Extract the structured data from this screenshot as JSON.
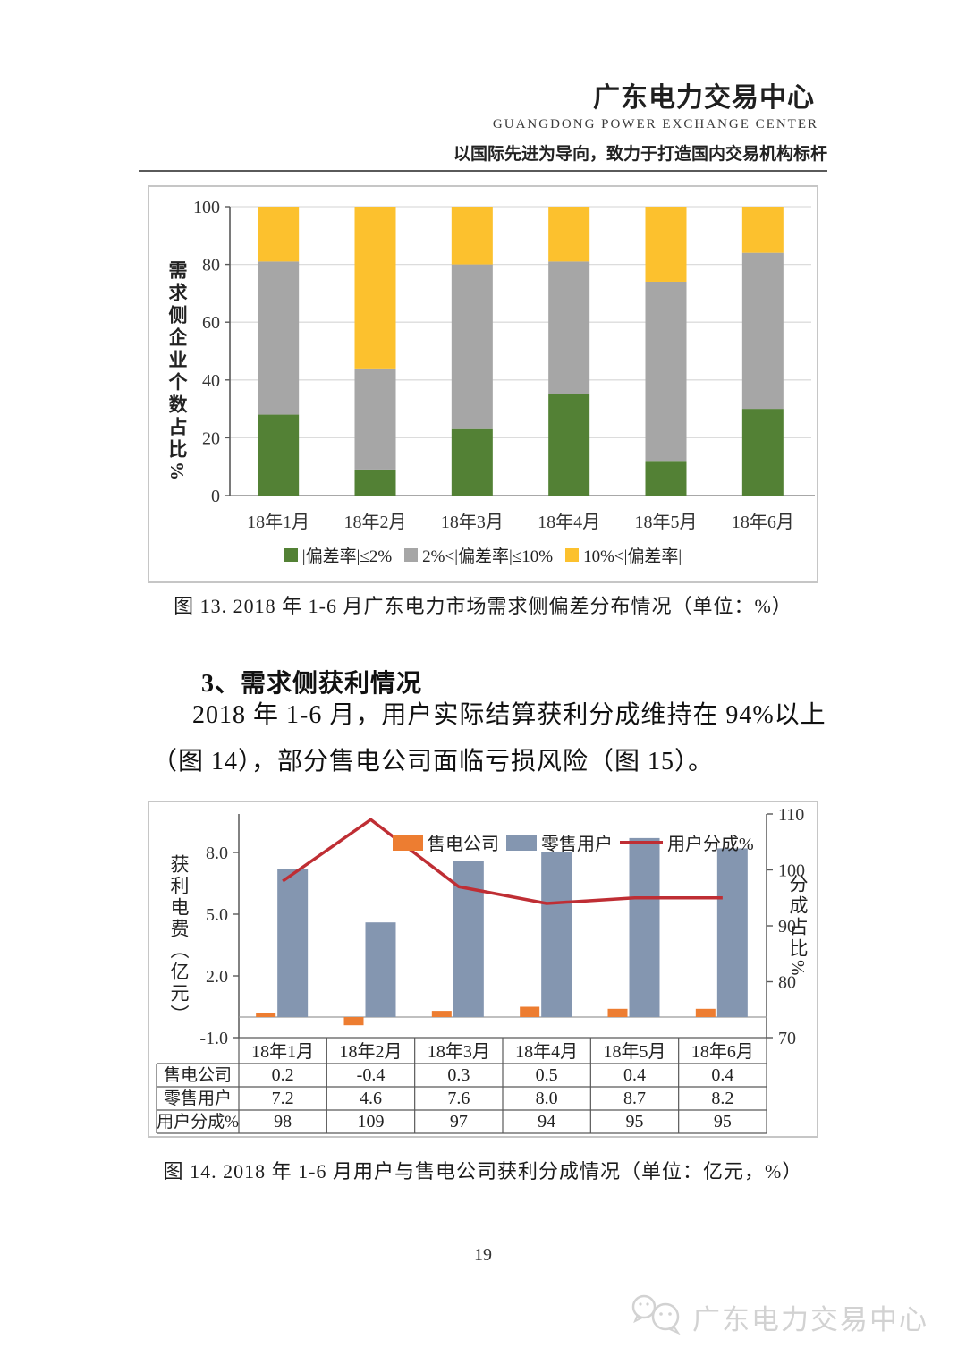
{
  "page": {
    "number": "19"
  },
  "header": {
    "org_cn": "广东电力交易中心",
    "org_en": "GUANGDONG  POWER  EXCHANGE  CENTER",
    "slogan": "以国际先进为导向，致力于打造国内交易机构标杆"
  },
  "colors": {
    "green": "#538135",
    "gray": "#a6a6a6",
    "yellow": "#fcc12e",
    "orange": "#ed7d31",
    "blue_gray": "#8496b0",
    "red": "#bf2e34",
    "grid": "#dcdcdc",
    "axis": "#595959"
  },
  "figure13": {
    "ylabel": "需求侧企业个数占比%",
    "yticks": [
      100,
      80,
      60,
      40,
      20,
      0
    ],
    "categories": [
      "18年1月",
      "18年2月",
      "18年3月",
      "18年4月",
      "18年5月",
      "18年6月"
    ],
    "series": {
      "le2": [
        28,
        9,
        23,
        35,
        12,
        30
      ],
      "mid": [
        53,
        35,
        57,
        46,
        62,
        54
      ],
      "gt10": [
        19,
        56,
        20,
        19,
        26,
        16
      ]
    },
    "legend": [
      {
        "label": "|偏差率|≤2%",
        "color_key": "green"
      },
      {
        "label": "2%<|偏差率|≤10%",
        "color_key": "gray"
      },
      {
        "label": "10%<|偏差率|",
        "color_key": "yellow"
      }
    ],
    "caption": "图  13. 2018 年 1-6 月广东电力市场需求侧偏差分布情况（单位：%）"
  },
  "section3": {
    "heading": "3、需求侧获利情况",
    "body_line1": "2018 年 1-6 月，用户实际结算获利分成维持在 94%以上",
    "body_line2": "（图  14），部分售电公司面临亏损风险（图  15）。"
  },
  "figure14": {
    "ylabel_left": "获利电费（亿元）",
    "ylabel_right": "分成占比%",
    "yticks_left": [
      "8.0",
      "5.0",
      "2.0",
      "-1.0"
    ],
    "yticks_right": [
      110,
      100,
      90,
      80,
      70
    ],
    "categories": [
      "18年1月",
      "18年2月",
      "18年3月",
      "18年4月",
      "18年5月",
      "18年6月"
    ],
    "legend": [
      {
        "label": "售电公司",
        "color_key": "orange",
        "type": "rect"
      },
      {
        "label": "零售用户",
        "color_key": "blue_gray",
        "type": "rect"
      },
      {
        "label": "用户分成%",
        "color_key": "red",
        "type": "line"
      }
    ],
    "bars_company": [
      0.2,
      -0.4,
      0.3,
      0.5,
      0.4,
      0.4
    ],
    "bars_retail": [
      7.2,
      4.6,
      7.6,
      8.0,
      8.7,
      8.2
    ],
    "line_share": [
      98,
      109,
      97,
      94,
      95,
      95
    ],
    "table": {
      "row_headers": [
        "售电公司",
        "零售用户",
        "用户分成%"
      ],
      "rows": [
        [
          "0.2",
          "-0.4",
          "0.3",
          "0.5",
          "0.4",
          "0.4"
        ],
        [
          "7.2",
          "4.6",
          "7.6",
          "8.0",
          "8.7",
          "8.2"
        ],
        [
          "98",
          "109",
          "97",
          "94",
          "95",
          "95"
        ]
      ]
    },
    "caption": "图  14. 2018 年 1-6 月用户与售电公司获利分成情况（单位：亿元，%）"
  },
  "footer": {
    "watermark": "广东电力交易中心"
  },
  "chart_data": [
    {
      "type": "bar",
      "subtype": "stacked",
      "title": "图13 2018年1-6月广东电力市场需求侧偏差分布情况（单位：%）",
      "categories": [
        "18年1月",
        "18年2月",
        "18年3月",
        "18年4月",
        "18年5月",
        "18年6月"
      ],
      "series": [
        {
          "name": "|偏差率|≤2%",
          "values": [
            28,
            9,
            23,
            35,
            12,
            30
          ]
        },
        {
          "name": "2%<|偏差率|≤10%",
          "values": [
            53,
            35,
            57,
            46,
            62,
            54
          ]
        },
        {
          "name": "10%<|偏差率|",
          "values": [
            19,
            56,
            20,
            19,
            26,
            16
          ]
        }
      ],
      "xlabel": "",
      "ylabel": "需求侧企业个数占比%",
      "ylim": [
        0,
        100
      ],
      "grid": true,
      "legend_position": "bottom"
    },
    {
      "type": "bar",
      "subtype": "combo-bar-line",
      "title": "图14 2018年1-6月用户与售电公司获利分成情况（单位：亿元，%）",
      "categories": [
        "18年1月",
        "18年2月",
        "18年3月",
        "18年4月",
        "18年5月",
        "18年6月"
      ],
      "series": [
        {
          "name": "售电公司",
          "type": "bar",
          "axis": "left",
          "values": [
            0.2,
            -0.4,
            0.3,
            0.5,
            0.4,
            0.4
          ]
        },
        {
          "name": "零售用户",
          "type": "bar",
          "axis": "left",
          "values": [
            7.2,
            4.6,
            7.6,
            8.0,
            8.7,
            8.2
          ]
        },
        {
          "name": "用户分成%",
          "type": "line",
          "axis": "right",
          "values": [
            98,
            109,
            97,
            94,
            95,
            95
          ]
        }
      ],
      "ylabel": "获利电费（亿元）",
      "ylabel_right": "分成占比%",
      "ylim_left": [
        -1.0,
        10.0
      ],
      "ylim_right": [
        70,
        110
      ],
      "grid": false,
      "legend_position": "top"
    }
  ]
}
